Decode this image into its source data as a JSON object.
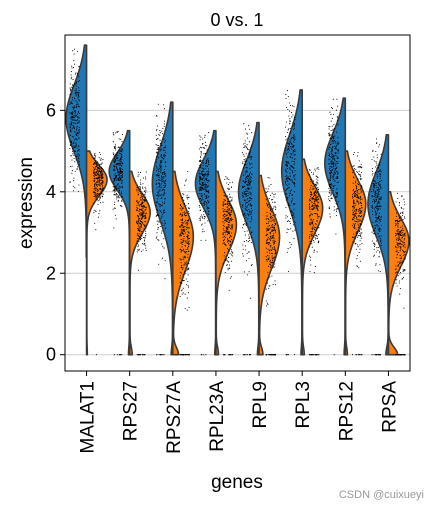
{
  "chart_data": {
    "type": "violin",
    "title": "0 vs. 1",
    "xlabel": "genes",
    "ylabel": "expression",
    "ylim": [
      -0.4,
      7.85
    ],
    "yticks": [
      0,
      2,
      4,
      6
    ],
    "grid": "horizontal",
    "split": true,
    "jitter_points": true,
    "categories": [
      "MALAT1",
      "RPS27",
      "RPS27A",
      "RPL23A",
      "RPL9",
      "RPL3",
      "RPS12",
      "RPSA"
    ],
    "series": [
      {
        "color": "#1f77b4",
        "side": "left",
        "median": [
          5.8,
          4.5,
          4.2,
          4.2,
          4.0,
          4.5,
          4.7,
          3.7
        ],
        "max": [
          7.6,
          5.5,
          6.2,
          5.5,
          5.7,
          6.5,
          6.3,
          5.4
        ],
        "min": [
          2.4,
          0.0,
          0.0,
          0.0,
          0.0,
          0.0,
          0.0,
          0.0
        ],
        "zero_fraction": [
          0.0,
          0.02,
          0.03,
          0.02,
          0.03,
          0.02,
          0.02,
          0.05
        ]
      },
      {
        "color": "#ff7f0e",
        "side": "right",
        "median": [
          4.3,
          3.5,
          2.9,
          3.2,
          2.9,
          3.6,
          3.7,
          2.8
        ],
        "max": [
          5.0,
          4.5,
          4.5,
          4.5,
          4.4,
          4.8,
          5.0,
          4.0
        ],
        "min": [
          0.0,
          0.0,
          0.0,
          0.0,
          0.0,
          0.0,
          0.0,
          0.0
        ],
        "zero_fraction": [
          0.01,
          0.05,
          0.12,
          0.05,
          0.08,
          0.04,
          0.04,
          0.2
        ]
      }
    ]
  },
  "watermark": "CSDN @cuixueyi"
}
